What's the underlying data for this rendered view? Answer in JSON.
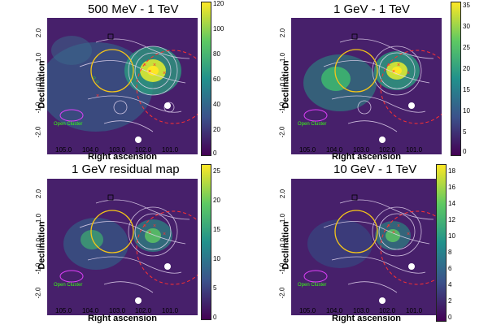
{
  "panels": [
    {
      "title": "500 MeV - 1 TeV",
      "cbar": [
        "120",
        "100",
        "80",
        "60",
        "40",
        "20",
        "0"
      ],
      "open_cluster": "Open Cluster"
    },
    {
      "title": "1 GeV - 1 TeV",
      "cbar": [
        "35",
        "30",
        "25",
        "20",
        "15",
        "10",
        "5",
        "0"
      ],
      "open_cluster": "Open Cluster"
    },
    {
      "title": "1 GeV residual map",
      "cbar": [
        "25",
        "20",
        "15",
        "10",
        "5",
        "0"
      ],
      "open_cluster": "Open Cluster"
    },
    {
      "title": "10 GeV - 1 TeV",
      "cbar": [
        "18",
        "16",
        "14",
        "12",
        "10",
        "8",
        "6",
        "4",
        "2",
        "0"
      ],
      "open_cluster": "Open Cluster"
    }
  ],
  "axes": {
    "xlabel": "Right ascension",
    "ylabel": "Declination",
    "xticks": [
      "105.0",
      "104.0",
      "103.0",
      "102.0",
      "101.0"
    ],
    "yticks": [
      "2.0",
      "1.0",
      "0.0",
      "-1.0",
      "-2.0"
    ]
  },
  "colors": {
    "bg": "#47206b",
    "yellow_circle": "#f5c518",
    "red_circle": "#ff3030",
    "contour": "#e6d8f2",
    "green": "#39ff14",
    "magenta": "#e040fb"
  }
}
